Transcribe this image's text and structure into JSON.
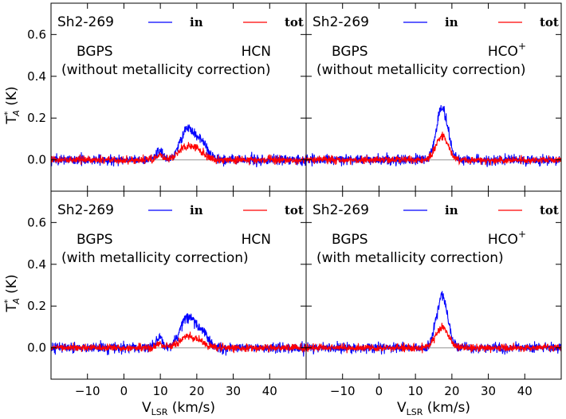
{
  "chart_data": {
    "type": "line",
    "layout": "2x2 grid, shared axes",
    "xlabel_main": "V",
    "xlabel_sub": "LSR",
    "xlabel_unit": " (km/s)",
    "ylabel_main": "T",
    "ylabel_sup": "*",
    "ylabel_sub": "A",
    "ylabel_unit": " (K)",
    "xlim": [
      -20,
      50
    ],
    "ylim": [
      -0.15,
      0.75
    ],
    "xticks": [
      -10,
      0,
      10,
      20,
      30,
      40
    ],
    "xtick_labels": [
      "−10",
      "0",
      "10",
      "20",
      "30",
      "40"
    ],
    "yticks": [
      0.0,
      0.2,
      0.4,
      0.6
    ],
    "ytick_labels": [
      "0.0",
      "0.2",
      "0.4",
      "0.6"
    ],
    "zero_line": true,
    "legend": [
      {
        "name": "in",
        "color": "#0000ff"
      },
      {
        "name": "tot",
        "color": "#ff0000"
      }
    ],
    "panels": [
      {
        "id": "top-left",
        "source": "Sh2-269",
        "survey": "BGPS",
        "molecule": "HCN",
        "molecule_sup": "",
        "note": "(without metallicity correction)",
        "series": [
          {
            "name": "in",
            "color": "#0000ff",
            "noise": 0.012,
            "components": [
              {
                "center": 17.5,
                "sigma": 2.0,
                "amp": 0.15
              },
              {
                "center": 21.5,
                "sigma": 1.6,
                "amp": 0.07
              },
              {
                "center": 9.8,
                "sigma": 1.0,
                "amp": 0.045
              }
            ]
          },
          {
            "name": "tot",
            "color": "#ff0000",
            "noise": 0.009,
            "components": [
              {
                "center": 17.5,
                "sigma": 2.2,
                "amp": 0.065
              },
              {
                "center": 21.0,
                "sigma": 1.5,
                "amp": 0.025
              },
              {
                "center": 9.8,
                "sigma": 1.0,
                "amp": 0.02
              }
            ]
          }
        ]
      },
      {
        "id": "top-right",
        "source": "Sh2-269",
        "survey": "BGPS",
        "molecule": "HCO",
        "molecule_sup": "+",
        "note": "(without metallicity correction)",
        "series": [
          {
            "name": "in",
            "color": "#0000ff",
            "noise": 0.012,
            "components": [
              {
                "center": 17.3,
                "sigma": 1.55,
                "amp": 0.25
              }
            ]
          },
          {
            "name": "tot",
            "color": "#ff0000",
            "noise": 0.009,
            "components": [
              {
                "center": 17.3,
                "sigma": 1.7,
                "amp": 0.115
              }
            ]
          }
        ]
      },
      {
        "id": "bottom-left",
        "source": "Sh2-269",
        "survey": "BGPS",
        "molecule": "HCN",
        "molecule_sup": "",
        "note": "(with metallicity correction)",
        "series": [
          {
            "name": "in",
            "color": "#0000ff",
            "noise": 0.012,
            "components": [
              {
                "center": 17.5,
                "sigma": 2.0,
                "amp": 0.15
              },
              {
                "center": 21.5,
                "sigma": 1.6,
                "amp": 0.07
              },
              {
                "center": 9.8,
                "sigma": 1.0,
                "amp": 0.045
              }
            ]
          },
          {
            "name": "tot",
            "color": "#ff0000",
            "noise": 0.009,
            "components": [
              {
                "center": 17.5,
                "sigma": 2.2,
                "amp": 0.055
              },
              {
                "center": 21.0,
                "sigma": 1.5,
                "amp": 0.02
              },
              {
                "center": 9.8,
                "sigma": 1.0,
                "amp": 0.018
              }
            ]
          }
        ]
      },
      {
        "id": "bottom-right",
        "source": "Sh2-269",
        "survey": "BGPS",
        "molecule": "HCO",
        "molecule_sup": "+",
        "note": "(with metallicity correction)",
        "series": [
          {
            "name": "in",
            "color": "#0000ff",
            "noise": 0.012,
            "components": [
              {
                "center": 17.3,
                "sigma": 1.55,
                "amp": 0.25
              }
            ]
          },
          {
            "name": "tot",
            "color": "#ff0000",
            "noise": 0.009,
            "components": [
              {
                "center": 17.3,
                "sigma": 1.7,
                "amp": 0.1
              }
            ]
          }
        ]
      }
    ]
  }
}
